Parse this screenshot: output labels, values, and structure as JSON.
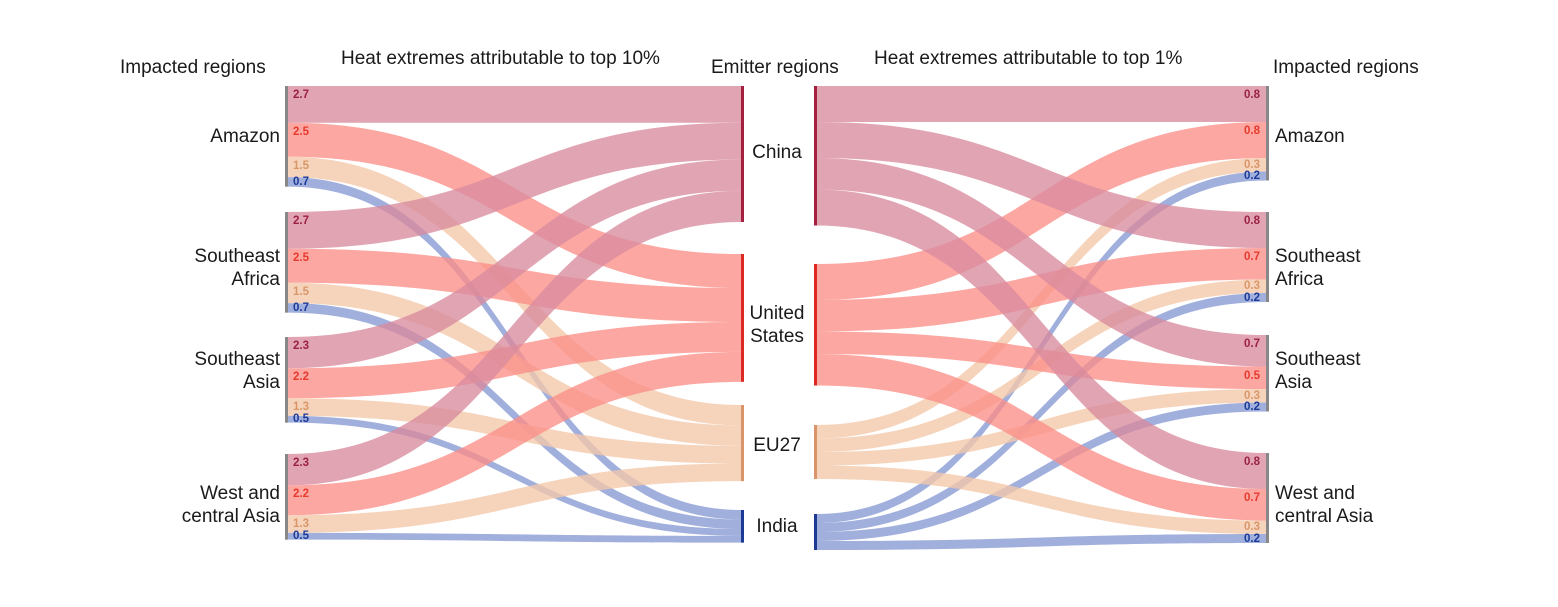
{
  "headers": {
    "left_impacted": "Impacted regions",
    "left_title": "Heat extremes attributable to top 10%",
    "emitter": "Emitter regions",
    "right_title": "Heat extremes attributable to top 1%",
    "right_impacted": "Impacted regions"
  },
  "regions": [
    {
      "line1": "Amazon",
      "line2": ""
    },
    {
      "line1": "Southeast",
      "line2": "Africa"
    },
    {
      "line1": "Southeast",
      "line2": "Asia"
    },
    {
      "line1": "West and",
      "line2": "central Asia"
    }
  ],
  "emitters": [
    {
      "line1": "China",
      "line2": ""
    },
    {
      "line1": "United",
      "line2": "States"
    },
    {
      "line1": "EU27",
      "line2": ""
    },
    {
      "line1": "India",
      "line2": ""
    }
  ],
  "colors": {
    "China": "#d98a9e",
    "United States": "#fb8e88",
    "EU27": "#f4c8a9",
    "India": "#8799d2",
    "China_text": "#9b2143",
    "United States_text": "#e8392d",
    "EU27_text": "#d99769",
    "India_text": "#1b3a9a",
    "China_bar": "#a3203f",
    "United States_bar": "#dc2a22",
    "EU27_bar": "#d9946a",
    "India_bar": "#1c3a94",
    "region_bar": "#888888"
  },
  "top10": {
    "Amazon": {
      "China": "2.7",
      "United States": "2.5",
      "EU27": "1.5",
      "India": "0.7"
    },
    "Southeast Africa": {
      "China": "2.7",
      "United States": "2.5",
      "EU27": "1.5",
      "India": "0.7"
    },
    "Southeast Asia": {
      "China": "2.3",
      "United States": "2.2",
      "EU27": "1.3",
      "India": "0.5"
    },
    "West and central Asia": {
      "China": "2.3",
      "United States": "2.2",
      "EU27": "1.3",
      "India": "0.5"
    }
  },
  "top1": {
    "Amazon": {
      "China": "0.8",
      "United States": "0.8",
      "EU27": "0.3",
      "India": "0.2"
    },
    "Southeast Africa": {
      "China": "0.8",
      "United States": "0.7",
      "EU27": "0.3",
      "India": "0.2"
    },
    "Southeast Asia": {
      "China": "0.7",
      "United States": "0.5",
      "EU27": "0.3",
      "India": "0.2"
    },
    "West and central Asia": {
      "China": "0.8",
      "United States": "0.7",
      "EU27": "0.3",
      "India": "0.2"
    }
  }
}
